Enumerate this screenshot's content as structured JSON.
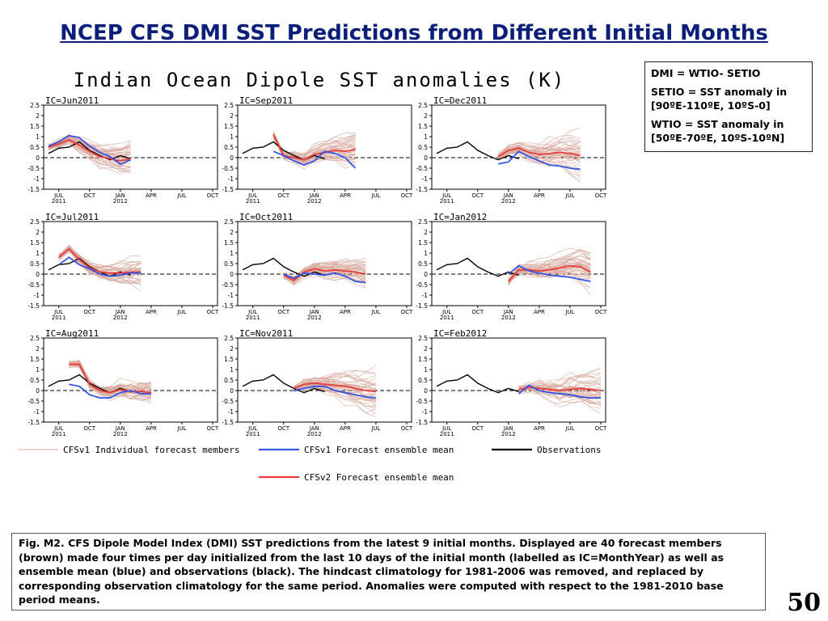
{
  "slide": {
    "title": "NCEP CFS DMI SST Predictions from Different Initial Months",
    "page_number": "50"
  },
  "definitions": [
    "DMI = WTIO- SETIO",
    "SETIO = SST anomaly in [90ºE-110ºE, 10ºS-0]",
    "WTIO = SST anomaly in [50ºE-70ºE, 10ºS-10ºN]"
  ],
  "caption": "Fig. M2. CFS Dipole Model Index (DMI) SST predictions from the latest 9 initial months. Displayed are 40 forecast members (brown) made four times per day initialized from the last 10 days of the initial month (labelled as IC=MonthYear) as well as ensemble mean (blue) and observations (black). The hindcast climatology for 1981-2006 was removed, and replaced by corresponding observation climatology for the same period. Anomalies were computed with respect to the 1981-2010 base period means.",
  "colors": {
    "title": "#0b1e7a",
    "members": "#d8a89c",
    "cfsv1_mean": "#3355e8",
    "cfsv2_mean": "#e83a3a",
    "observations": "#000000"
  },
  "chart_data": {
    "type": "line",
    "title": "Indian Ocean Dipole SST anomalies (K)",
    "ylim": [
      -1.5,
      2.5
    ],
    "yticks": [
      "2.5",
      "2",
      "1.5",
      "1",
      "0.5",
      "0",
      "-0.5",
      "-1",
      "-1.5"
    ],
    "xticks": [
      {
        "month": "JUL",
        "year": "2011"
      },
      {
        "month": "OCT",
        "year": ""
      },
      {
        "month": "JAN",
        "year": "2012"
      },
      {
        "month": "APR",
        "year": ""
      },
      {
        "month": "JUL",
        "year": ""
      },
      {
        "month": "OCT",
        "year": ""
      }
    ],
    "x_months": [
      "2011-06",
      "2011-07",
      "2011-08",
      "2011-09",
      "2011-10",
      "2011-11",
      "2011-12",
      "2012-01",
      "2012-02",
      "2012-03",
      "2012-04",
      "2012-05",
      "2012-06",
      "2012-07",
      "2012-08",
      "2012-09",
      "2012-10"
    ],
    "observations": [
      0.2,
      0.45,
      0.5,
      0.75,
      0.35,
      0.1,
      -0.1,
      0.1,
      -0.05
    ],
    "legend": [
      {
        "key": "members",
        "label": "CFSv1 Individual forecast members"
      },
      {
        "key": "cfsv1_mean",
        "label": "CFSv1 Forecast ensemble mean"
      },
      {
        "key": "observations",
        "label": "Observations"
      },
      {
        "key": "cfsv2_mean",
        "label": "CFSv2 Forecast ensemble mean"
      }
    ],
    "panels": [
      {
        "ic": "IC=Jun2011",
        "start": 0,
        "cfsv1_mean": [
          0.55,
          0.75,
          1.05,
          0.95,
          0.55,
          0.25,
          0.05,
          -0.3,
          -0.1
        ],
        "cfsv2_mean": [
          0.5,
          0.65,
          0.85,
          0.6,
          0.3,
          0.05,
          -0.05,
          -0.15,
          -0.05
        ],
        "spread": 0.55
      },
      {
        "ic": "IC=Jul2011",
        "start": 1,
        "cfsv1_mean": [
          0.45,
          0.8,
          0.45,
          0.25,
          0.0,
          -0.1,
          -0.05,
          0.05,
          0.05
        ],
        "cfsv2_mean": [
          0.8,
          1.2,
          0.7,
          0.3,
          0.1,
          0.05,
          0.05,
          0.1,
          0.1
        ],
        "spread": 0.5
      },
      {
        "ic": "IC=Aug2011",
        "start": 2,
        "cfsv1_mean": [
          0.3,
          0.2,
          -0.2,
          -0.35,
          -0.35,
          -0.1,
          0.0,
          -0.15,
          -0.15
        ],
        "cfsv2_mean": [
          1.25,
          1.25,
          0.3,
          0.0,
          -0.1,
          0.05,
          -0.05,
          -0.05,
          -0.1
        ],
        "spread": 0.5
      },
      {
        "ic": "IC=Sep2011",
        "start": 3,
        "cfsv1_mean": [
          0.3,
          0.1,
          -0.15,
          -0.35,
          -0.15,
          0.3,
          0.2,
          0.0,
          -0.5
        ],
        "cfsv2_mean": [
          1.1,
          0.1,
          0.0,
          -0.1,
          0.15,
          0.25,
          0.35,
          0.3,
          0.4
        ],
        "spread": 0.55
      },
      {
        "ic": "IC=Oct2011",
        "start": 4,
        "cfsv1_mean": [
          0.0,
          -0.2,
          0.05,
          0.0,
          -0.05,
          0.05,
          -0.1,
          -0.35,
          -0.4
        ],
        "cfsv2_mean": [
          -0.05,
          -0.3,
          0.1,
          0.25,
          0.15,
          0.2,
          0.15,
          0.1,
          0.0
        ],
        "spread": 0.65
      },
      {
        "ic": "IC=Nov2011",
        "start": 5,
        "cfsv1_mean": [
          0.0,
          0.1,
          0.2,
          0.2,
          0.0,
          -0.1,
          -0.2,
          -0.3,
          -0.35
        ],
        "cfsv2_mean": [
          0.1,
          0.3,
          0.35,
          0.3,
          0.25,
          0.2,
          0.1,
          0.0,
          -0.05
        ],
        "spread": 0.75
      },
      {
        "ic": "IC=Dec2011",
        "start": 6,
        "cfsv1_mean": [
          -0.3,
          -0.2,
          0.3,
          0.05,
          -0.15,
          -0.35,
          -0.4,
          -0.5,
          -0.55
        ],
        "cfsv2_mean": [
          0.05,
          0.35,
          0.45,
          0.25,
          0.15,
          0.2,
          0.25,
          0.2,
          0.1
        ],
        "spread": 0.8
      },
      {
        "ic": "IC=Jan2012",
        "start": 7,
        "cfsv1_mean": [
          0.0,
          0.4,
          0.15,
          0.05,
          -0.05,
          -0.1,
          -0.15,
          -0.25,
          -0.35
        ],
        "cfsv2_mean": [
          -0.35,
          0.2,
          0.2,
          0.15,
          0.2,
          0.3,
          0.4,
          0.35,
          0.1
        ],
        "spread": 0.9
      },
      {
        "ic": "IC=Feb2012",
        "start": 8,
        "cfsv1_mean": [
          -0.15,
          0.25,
          0.0,
          -0.1,
          -0.15,
          -0.2,
          -0.3,
          -0.35,
          -0.35
        ],
        "cfsv2_mean": [
          0.05,
          0.15,
          0.1,
          0.05,
          0.0,
          0.05,
          0.1,
          0.05,
          0.0
        ],
        "spread": 0.9
      }
    ]
  }
}
